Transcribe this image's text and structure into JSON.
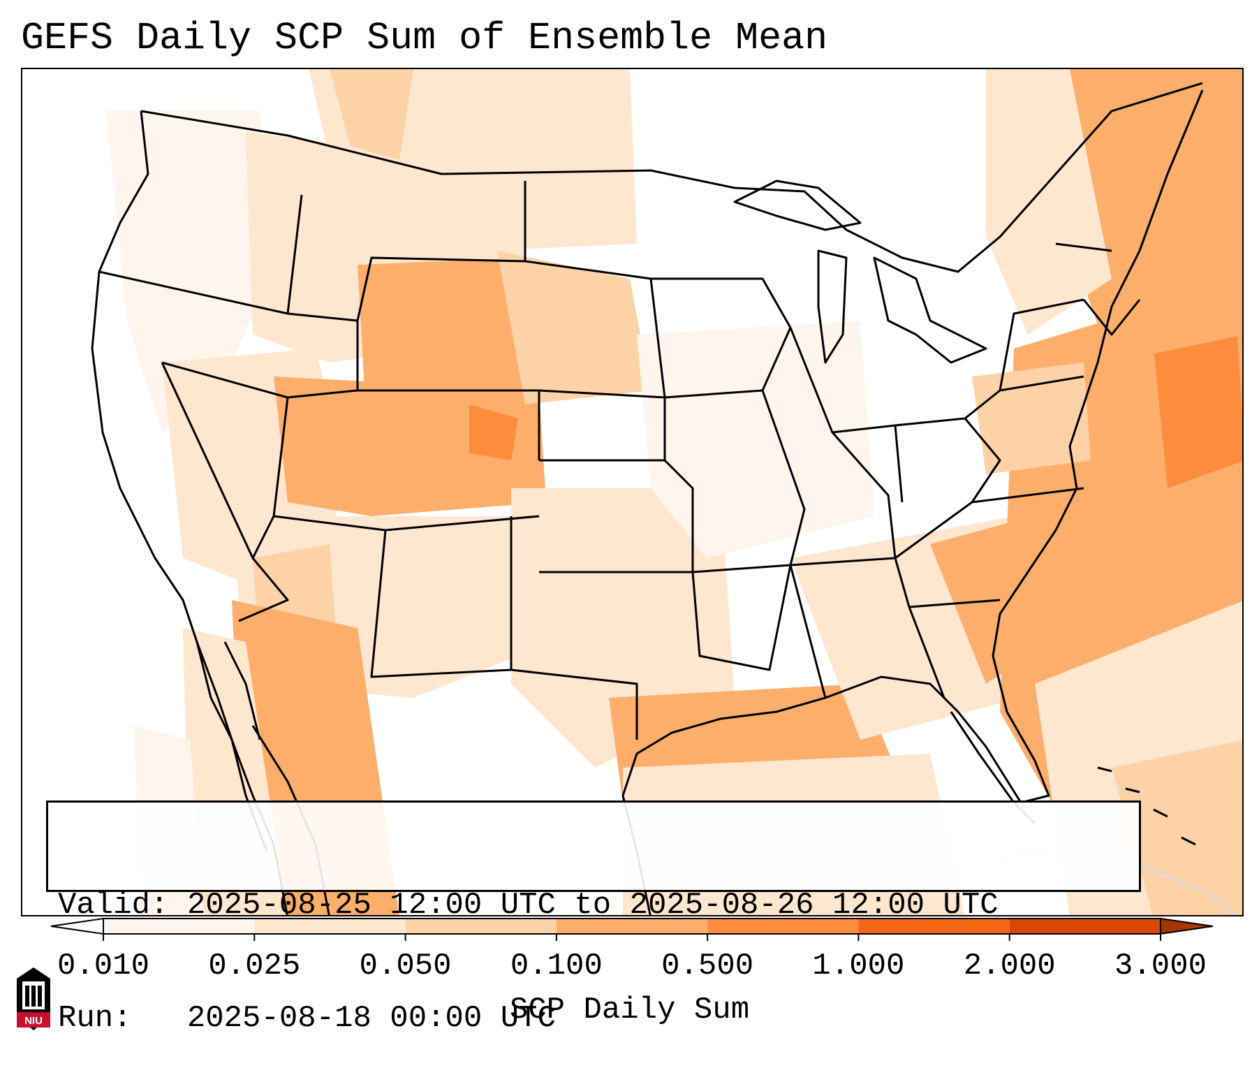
{
  "title": "GEFS Daily SCP Sum of Ensemble Mean",
  "info": {
    "valid_label": "Valid:",
    "valid_value": "2025-08-25 12:00 UTC to 2025-08-26 12:00 UTC",
    "run_label": "Run:",
    "run_value": "2025-08-18 00:00 UTC"
  },
  "colorbar": {
    "label": "SCP Daily Sum",
    "ticks": [
      "0.010",
      "0.025",
      "0.050",
      "0.100",
      "0.500",
      "1.000",
      "2.000",
      "3.000"
    ],
    "colors": [
      "#fff5ec",
      "#fee6cf",
      "#fdd2a6",
      "#fdae6b",
      "#fd8d3c",
      "#f16913",
      "#d94801",
      "#a63603"
    ],
    "extend": "both"
  },
  "logo": {
    "text": "NIU"
  },
  "map": {
    "region": "CONUS",
    "fill_colors": {
      "low": "#fff5ec",
      "light": "#fee6cf",
      "medium": "#fdd2a6",
      "high": "#fdae6b",
      "peak": "#fd8d3c"
    }
  }
}
